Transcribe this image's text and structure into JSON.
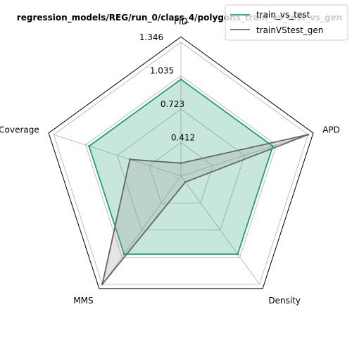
{
  "chart_data": {
    "type": "radar",
    "title": "regression_models/REG/run_0/class_4/polygons_train_vs_test_vs_gen",
    "axes": [
      "FID",
      "APD",
      "Density",
      "MMS",
      "Coverage"
    ],
    "radial_ticks": [
      "0.412",
      "0.723",
      "1.035",
      "1.346"
    ],
    "radial_tick_values": [
      0.412,
      0.723,
      1.035,
      1.346
    ],
    "rlim": [
      0.1,
      1.346
    ],
    "grid": true,
    "legend_position": "top-right",
    "series": [
      {
        "name": "train_vs_test",
        "color": "#1f9e77",
        "fill": "#1f9e77",
        "values": [
          1.0,
          1.0,
          1.0,
          1.0,
          1.0
        ]
      },
      {
        "name": "trainVStest_gen",
        "color": "#666666",
        "fill": "#999999",
        "values": [
          0.22,
          1.346,
          0.17,
          1.346,
          0.6
        ]
      }
    ]
  }
}
